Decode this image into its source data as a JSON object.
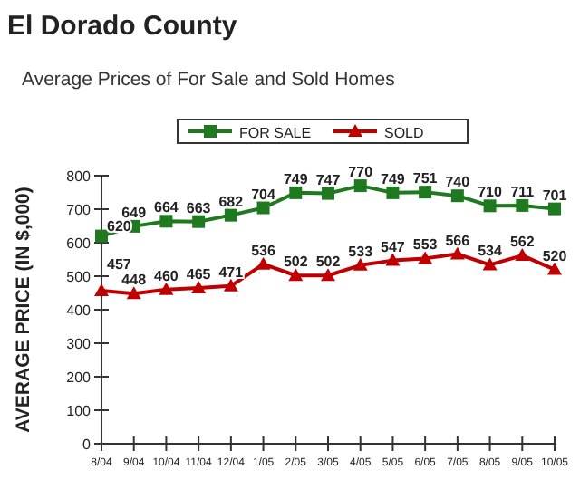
{
  "chart_data": {
    "type": "line",
    "title": "El Dorado County",
    "subtitle": "Average Prices of For Sale and Sold Homes",
    "ylabel": "AVERAGE PRICE (IN $,000)",
    "categories": [
      "8/04",
      "9/04",
      "10/04",
      "11/04",
      "12/04",
      "1/05",
      "2/05",
      "3/05",
      "4/05",
      "5/05",
      "6/05",
      "7/05",
      "8/05",
      "9/05",
      "10/05"
    ],
    "series": [
      {
        "name": "FOR SALE",
        "color": "#1f7a1f",
        "marker": "square",
        "values": [
          620,
          649,
          664,
          663,
          682,
          704,
          749,
          747,
          770,
          749,
          751,
          740,
          710,
          711,
          701
        ]
      },
      {
        "name": "SOLD",
        "color": "#c00000",
        "marker": "triangle",
        "values": [
          457,
          448,
          460,
          465,
          471,
          536,
          502,
          502,
          533,
          547,
          553,
          566,
          534,
          562,
          520
        ]
      }
    ],
    "ylim": [
      0,
      800
    ],
    "yticks": [
      0,
      100,
      200,
      300,
      400,
      500,
      600,
      700,
      800
    ],
    "grid": false,
    "legend": "top",
    "data_labels": true
  }
}
